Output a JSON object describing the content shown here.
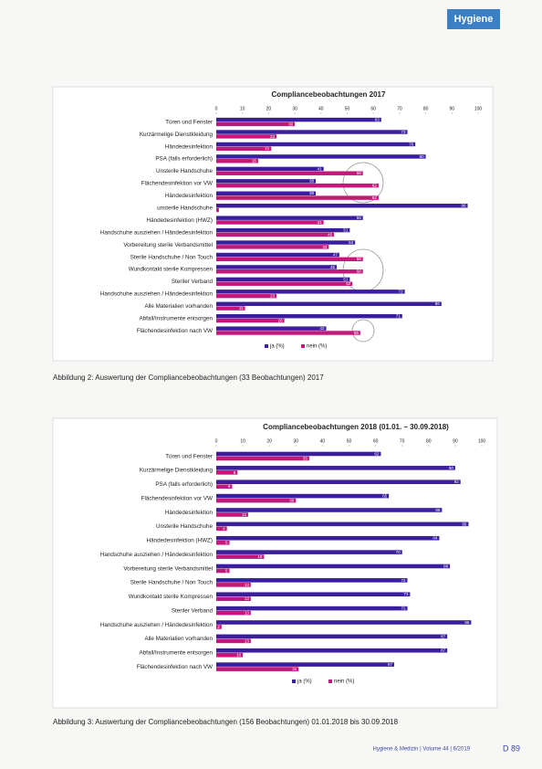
{
  "header": {
    "logo": "Hygiene"
  },
  "chart_data": [
    {
      "type": "hbar",
      "title": "Compliancebeobachtungen 2017",
      "categories": [
        "Türen und Fenster",
        "Kurzärmelige Dienstkleidung",
        "Händedesinfektion",
        "PSA (falls erforderlich)",
        "Unsterile Handschuhe",
        "Flächendesinfektion vor VW",
        "Händedesinfektion",
        "unsterile Handschuhe",
        "Händedesinfektion (HWZ)",
        "Handschuhe ausziehen / Händedesinfektion",
        "Vorbereitung sterile Verbandsmittel",
        "Sterile Handschuhe / Non Touch",
        "Wundkontakt sterile Kompressen",
        "Steriler Verband",
        "Handschuhe ausziehen / Händedesinfektion",
        "Alle Materialien vorhanden",
        "Abfall/Instrumente entsorgen",
        "Flächendesinfektion nach VW"
      ],
      "series": [
        {
          "name": "ja (%)",
          "color": "#3a1e9e",
          "values": [
            63,
            73,
            76,
            80,
            41,
            38,
            38,
            96,
            56,
            51,
            53,
            47,
            46,
            51,
            72,
            86,
            71,
            42
          ]
        },
        {
          "name": "nein (%)",
          "color": "#c3177c",
          "values": [
            30,
            23,
            21,
            16,
            56,
            62,
            62,
            1,
            41,
            45,
            43,
            56,
            56,
            52,
            23,
            11,
            26,
            55
          ]
        }
      ],
      "xlim": [
        0,
        100
      ],
      "xticks": [
        0,
        10,
        20,
        30,
        40,
        50,
        60,
        70,
        80,
        90,
        100
      ],
      "legend": "bottom"
    },
    {
      "type": "hbar",
      "title": "Compliancebeobachtungen 2018 (01.01. – 30.09.2018)",
      "categories": [
        "Türen und Fenster",
        "Kurzärmelige Dienstkleidung",
        "PSA (falls erforderlich)",
        "Flächendesinfektion vor VW",
        "Händedesinfektion",
        "Unsterile Handschuhe",
        "Händedesinfektion (HWZ)",
        "Handschuhe ausziehen / Händedesinfektion",
        "Vorbereitung sterile Verbandsmittel",
        "Sterile Handschuhe / Non Touch",
        "Wundkontakt sterile Kompressen",
        "Steriler Verband",
        "Handschuhe ausziehen / Händedesinfektion",
        "Alle Materialien vorhanden",
        "Abfall/Instrumente entsorgen",
        "Flächendesinfektion nach VW"
      ],
      "series": [
        {
          "name": "ja (%)",
          "color": "#3a1e9e",
          "values": [
            62,
            90,
            92,
            65,
            85,
            95,
            84,
            70,
            88,
            72,
            73,
            72,
            96,
            87,
            87,
            67
          ]
        },
        {
          "name": "nein (%)",
          "color": "#c3177c",
          "values": [
            35,
            8,
            6,
            30,
            12,
            4,
            5,
            18,
            5,
            13,
            13,
            13,
            2,
            13,
            10,
            31
          ]
        }
      ],
      "xlim": [
        0,
        100
      ],
      "xticks": [
        0,
        10,
        20,
        30,
        40,
        50,
        60,
        70,
        80,
        90,
        100
      ],
      "legend": "bottom"
    }
  ],
  "captions": [
    "Abbildung 2: Auswertung der Compliancebeobachtungen (33 Beobachtungen) 2017",
    "Abbildung 3: Auswertung der Compliancebeobachtungen (156 Beobachtungen) 01.01.2018 bis 30.09.2018"
  ],
  "footer": {
    "journal": "Hygiene & Medizin | Volume 44 | 6/2019",
    "page": "D 89"
  }
}
